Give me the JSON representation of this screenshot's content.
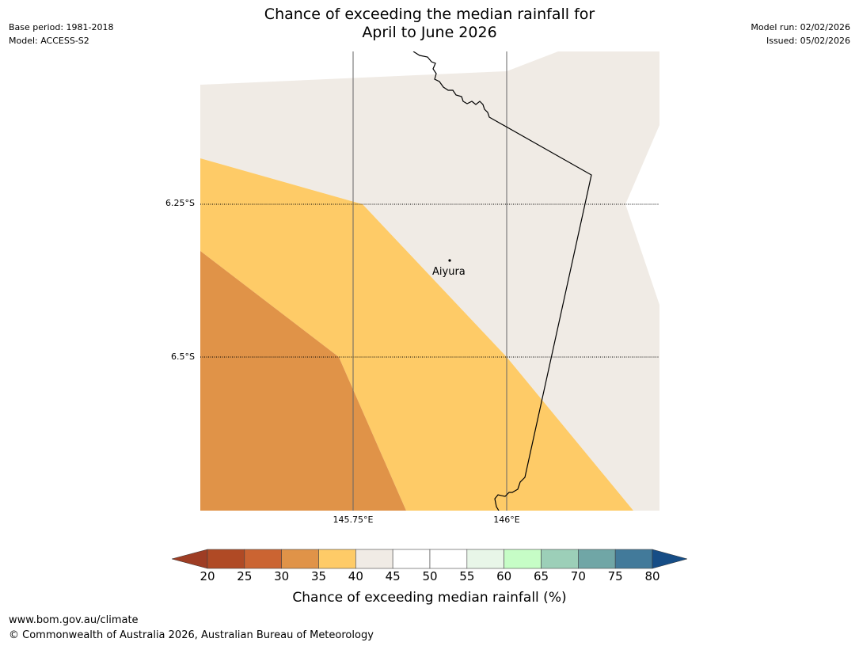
{
  "header": {
    "title_line1": "Chance of exceeding the median rainfall for",
    "title_line2": "April to June 2026",
    "base_period": "Base period: 1981-2018",
    "model": "Model: ACCESS-S2",
    "model_run": "Model run: 02/02/2026",
    "issued": "Issued: 05/02/2026"
  },
  "map": {
    "lat_labels": [
      "6.25°S",
      "6.5°S"
    ],
    "lon_labels": [
      "145.75°E",
      "146°E"
    ],
    "town": {
      "name": "Aiyura",
      "lat": -6.35,
      "lon": 145.9
    },
    "region_colors": {
      "band_35_40": "#e09348",
      "band_40_45": "#fecb67",
      "band_45_50": "#f0ebe5"
    }
  },
  "colorbar": {
    "title": "Chance of exceeding median rainfall (%)",
    "ticks": [
      "20",
      "25",
      "30",
      "35",
      "40",
      "45",
      "50",
      "55",
      "60",
      "65",
      "70",
      "75",
      "80"
    ],
    "under_color": "#9e3d24",
    "over_color": "#164d86",
    "colors": [
      "#b04a25",
      "#cb6432",
      "#e09348",
      "#fecb67",
      "#f0ebe5",
      "#ffffff",
      "#ffffff",
      "#e8f6e8",
      "#c6fdc6",
      "#9ccfb8",
      "#70a6a6",
      "#427a9a"
    ]
  },
  "footer": {
    "url": "www.bom.gov.au/climate",
    "copyright": "© Commonwealth of Australia 2026, Australian Bureau of Meteorology"
  }
}
